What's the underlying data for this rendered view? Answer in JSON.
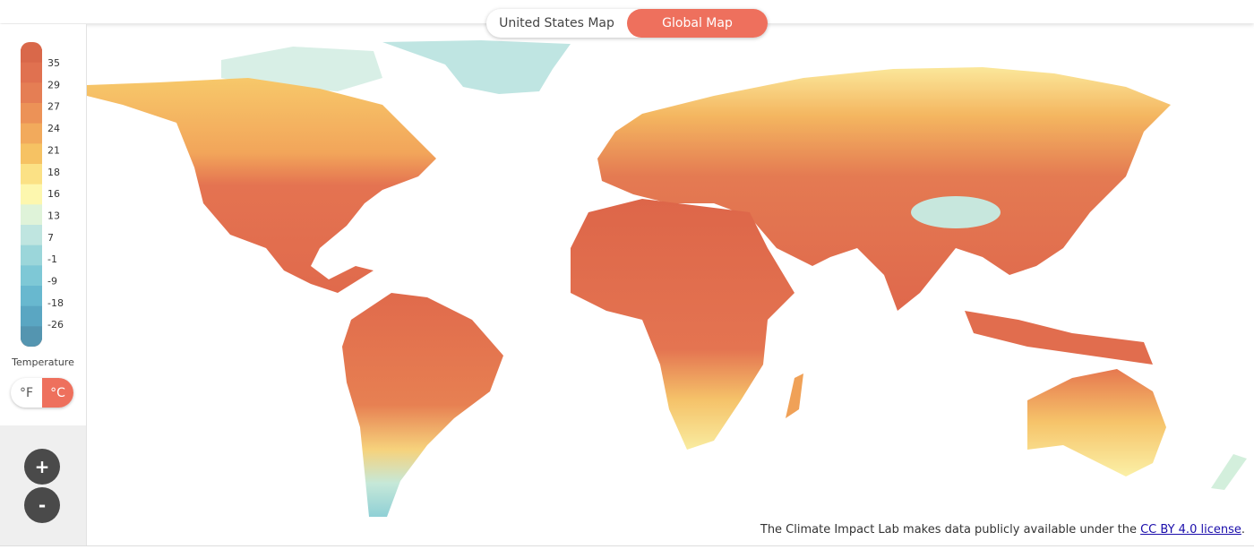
{
  "tabs": [
    "United States Map",
    "Global Map"
  ],
  "legend": {
    "labels": [
      35,
      29,
      27,
      24,
      21,
      18,
      16,
      13,
      7,
      -1,
      -9,
      -18,
      -26
    ],
    "title": "Temperature"
  },
  "units": [
    "°F",
    "°C"
  ],
  "zoom": [
    "+",
    "-"
  ],
  "footer": {
    "text": "The Climate Impact Lab makes data publicly available under the",
    "link": "CC BY 4.0 license",
    "end": "."
  }
}
